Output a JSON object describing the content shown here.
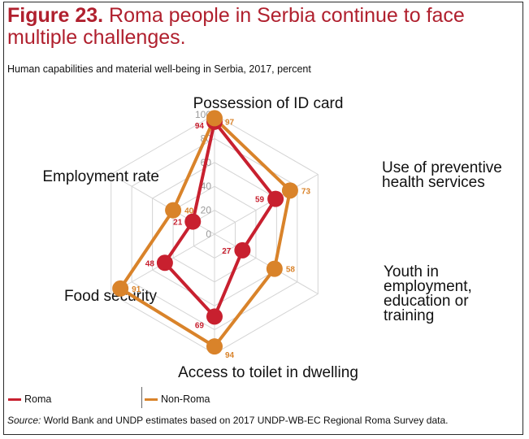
{
  "figure": {
    "number": "Figure 23.",
    "title": " Roma people in Serbia continue to face multiple challenges.",
    "subtitle": "Human capabilities and material well-being in Serbia, 2017, percent"
  },
  "chart_data": {
    "type": "radar",
    "axes": [
      "Possession of ID card",
      "Use of preventive health services",
      "Youth in employment, education or training",
      "Access to toilet in dwelling",
      "Food security",
      "Employment rate"
    ],
    "axis_label_lines": [
      [
        "Possession of ID card"
      ],
      [
        "Use of preventive",
        "health services"
      ],
      [
        "Youth in",
        "employment,",
        "education or",
        "training"
      ],
      [
        "Access to toilet in dwelling"
      ],
      [
        "Food security"
      ],
      [
        "Employment rate"
      ]
    ],
    "rlim": [
      0,
      100
    ],
    "rticks": [
      0,
      20,
      40,
      60,
      80,
      100
    ],
    "grid": true,
    "series": [
      {
        "name": "Roma",
        "color": "#c8202f",
        "values": [
          94,
          59,
          27,
          69,
          48,
          21
        ]
      },
      {
        "name": "Non-Roma",
        "color": "#d9832a",
        "values": [
          97,
          73,
          58,
          94,
          91,
          40
        ]
      }
    ]
  },
  "legend": {
    "position": "bottom-left",
    "items": [
      "Roma",
      "Non-Roma"
    ]
  },
  "source": {
    "label": "Source:",
    "text": " World Bank and UNDP estimates based on 2017 UNDP-WB-EC Regional Roma Survey data."
  }
}
